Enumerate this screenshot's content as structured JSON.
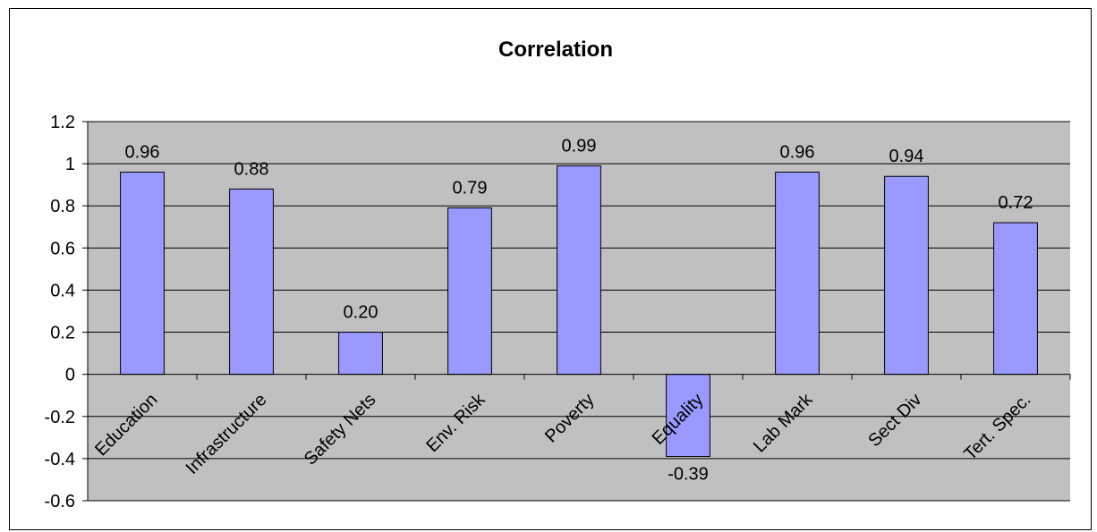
{
  "chart_data": {
    "type": "bar",
    "title": "Correlation",
    "xlabel": "",
    "ylabel": "",
    "categories": [
      "Education",
      "Infrastructure",
      "Safety Nets",
      "Env. Risk",
      "Poverty",
      "Equality",
      "Lab Mark",
      "Sect Div",
      "Tert. Spec."
    ],
    "values": [
      0.96,
      0.88,
      0.2,
      0.79,
      0.99,
      -0.39,
      0.96,
      0.94,
      0.72
    ],
    "data_labels": [
      "0.96",
      "0.88",
      "0.20",
      "0.79",
      "0.99",
      "-0.39",
      "0.96",
      "0.94",
      "0.72"
    ],
    "ylim": [
      -0.6,
      1.2
    ],
    "yticks": [
      1.2,
      1,
      0.8,
      0.6,
      0.4,
      0.2,
      0,
      -0.2,
      -0.4,
      -0.6
    ],
    "ytick_labels": [
      "1.2",
      "1",
      "0.8",
      "0.6",
      "0.4",
      "0.2",
      "0",
      "-0.2",
      "-0.4",
      "-0.6"
    ],
    "grid": true,
    "legend": "none",
    "colors": {
      "bar": "#9999ff",
      "plot_background": "#c0c0c0",
      "gridline": "#000000"
    }
  }
}
